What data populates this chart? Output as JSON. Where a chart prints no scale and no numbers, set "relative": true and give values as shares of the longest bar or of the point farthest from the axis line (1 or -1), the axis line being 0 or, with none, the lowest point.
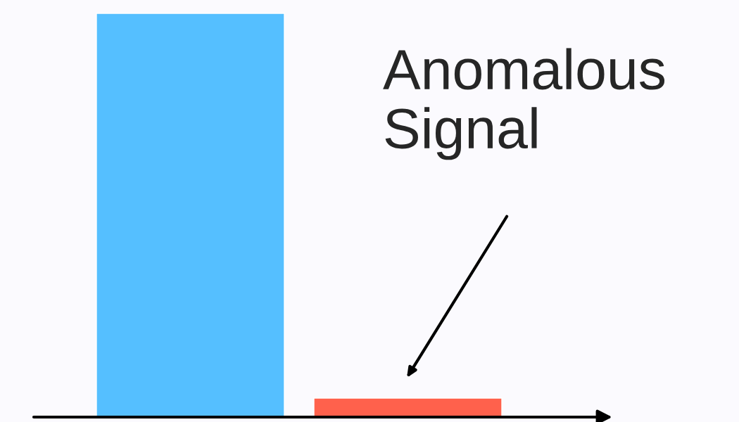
{
  "chart_data": {
    "type": "bar",
    "relative": true,
    "categories": [
      null,
      null
    ],
    "colors": [
      "#55bfff",
      "#ff614c"
    ],
    "values": [
      1,
      0.047
    ],
    "annotations": [
      "Anomalous\nSignal"
    ]
  }
}
